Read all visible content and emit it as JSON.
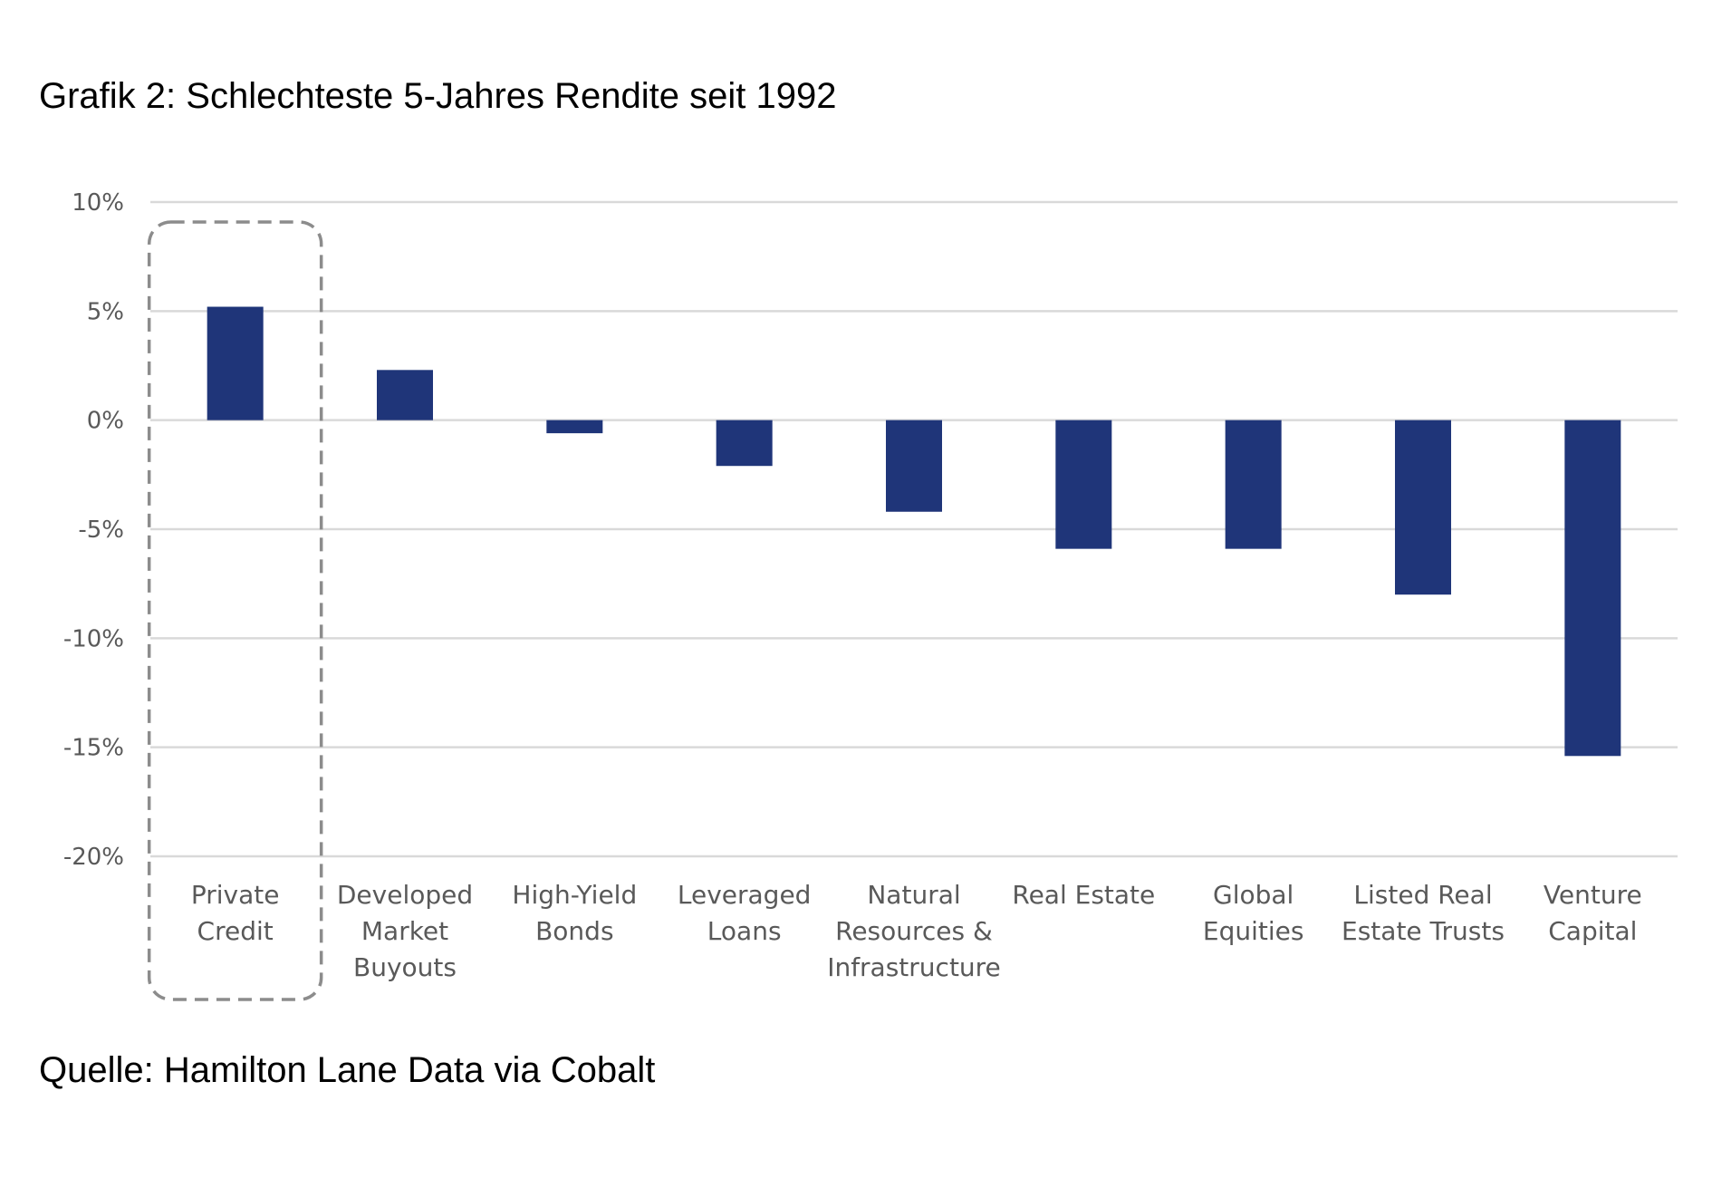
{
  "title": "Grafik 2: Schlechteste 5-Jahres Rendite seit 1992",
  "source": "Quelle: Hamilton Lane Data via Cobalt",
  "colors": {
    "bar": "#1f3579",
    "grid": "#d9d9d9",
    "highlight_border": "#8c8c8c",
    "text": "#595959"
  },
  "chart_data": {
    "type": "bar",
    "categories": [
      [
        "Private",
        "Credit"
      ],
      [
        "Developed",
        "Market",
        "Buyouts"
      ],
      [
        "High-Yield",
        "Bonds"
      ],
      [
        "Leveraged",
        "Loans"
      ],
      [
        "Natural",
        "Resources &",
        "Infrastructure"
      ],
      [
        "Real Estate"
      ],
      [
        "Global",
        "Equities"
      ],
      [
        "Listed Real",
        "Estate Trusts"
      ],
      [
        "Venture",
        "Capital"
      ]
    ],
    "values": [
      5.2,
      2.3,
      -0.6,
      -2.1,
      -4.2,
      -5.9,
      -5.9,
      -8.0,
      -15.4
    ],
    "ylim": [
      -20,
      10
    ],
    "yticks": [
      10,
      5,
      0,
      -5,
      -10,
      -15,
      -20
    ],
    "ytick_labels": [
      "10%",
      "5%",
      "0%",
      "-5%",
      "-10%",
      "-15%",
      "-20%"
    ],
    "grid": true,
    "highlighted_category_index": 0,
    "highlight_style": "dashed-rounded-box",
    "xlabel": "",
    "ylabel": ""
  }
}
